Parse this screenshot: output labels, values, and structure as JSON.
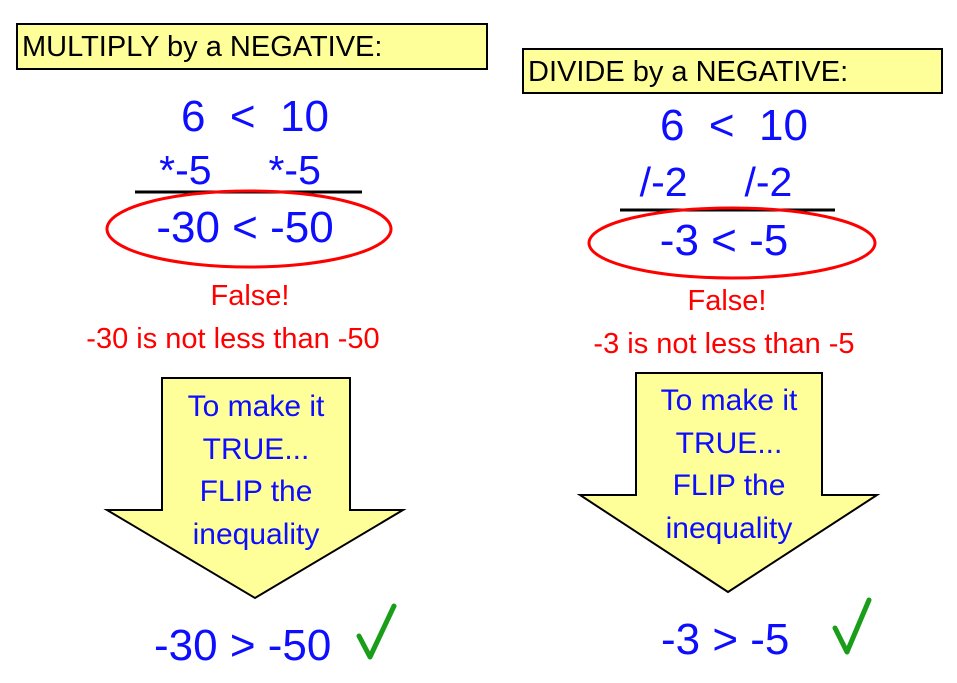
{
  "left": {
    "title": "MULTIPLY by a NEGATIVE:",
    "inequality": "6  <  10",
    "operation": "*-5     *-5",
    "result": "-30 < -50",
    "verdict": "False!",
    "explanation": "-30 is not less than -50",
    "arrow_text": [
      "To make it",
      "TRUE...",
      "FLIP the",
      "inequality"
    ],
    "corrected": "-30 > -50"
  },
  "right": {
    "title": "DIVIDE by a NEGATIVE:",
    "inequality": "6  <  10",
    "operation": "/-2     /-2",
    "result": "-3 < -5",
    "verdict": "False!",
    "explanation": "-3 is not less than -5",
    "arrow_text": [
      "To make it",
      "TRUE...",
      "FLIP the",
      "inequality"
    ],
    "corrected": "-3 > -5"
  },
  "colors": {
    "math": "#0d0dff",
    "error": "#ff0000",
    "highlight": "#ffff99",
    "check": "#1a9e1a"
  },
  "icons": {
    "check": "checkmark-icon"
  }
}
